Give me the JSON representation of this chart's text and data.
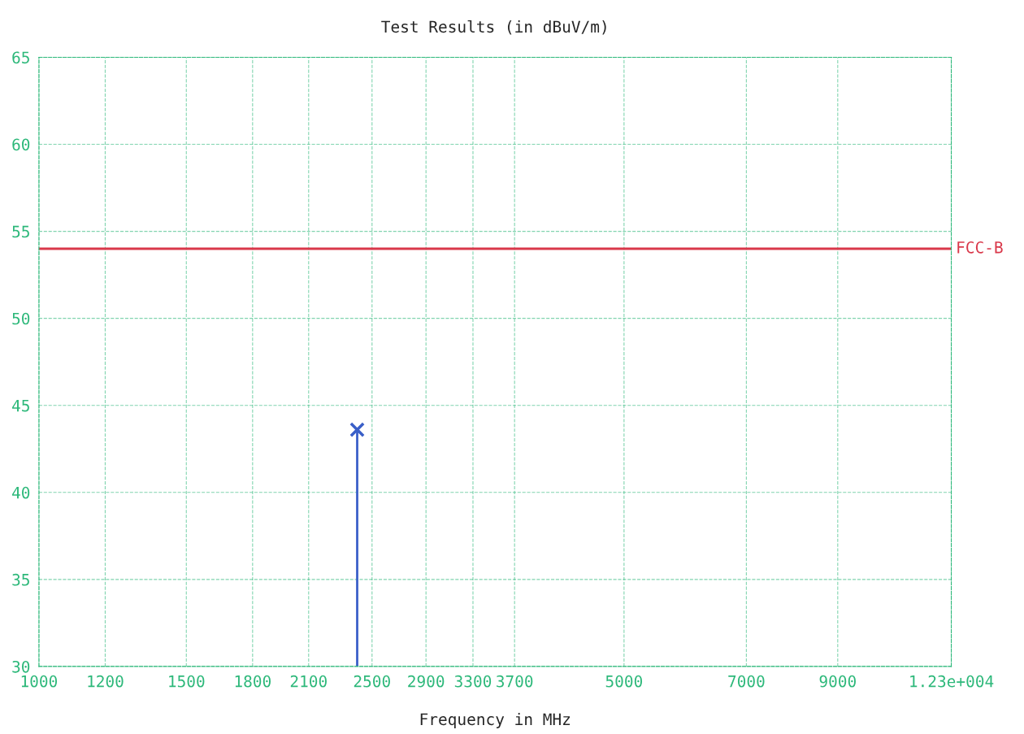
{
  "chart_data": {
    "type": "lollipop",
    "title": "Test Results (in dBuV/m)",
    "xlabel": "Frequency in MHz",
    "x": [
      2400
    ],
    "values": [
      43.6
    ],
    "color": "#3a5fc8",
    "marker": "cross",
    "log": "x",
    "xlim": [
      1000,
      12300
    ],
    "xticks": [
      1000,
      1200,
      1500,
      1800,
      2100,
      2500,
      2900,
      3300,
      3700,
      5000,
      7000,
      9000,
      {
        "value": 12300,
        "label": "1.23e+004"
      }
    ],
    "ylim": [
      30,
      65
    ],
    "yticks": [
      30,
      35,
      40,
      45,
      50,
      55,
      60,
      65
    ],
    "grid": true,
    "ref_lines": [
      {
        "axis": "y",
        "value": 54,
        "label": "FCC-B",
        "color": "#d9384a"
      }
    ]
  }
}
